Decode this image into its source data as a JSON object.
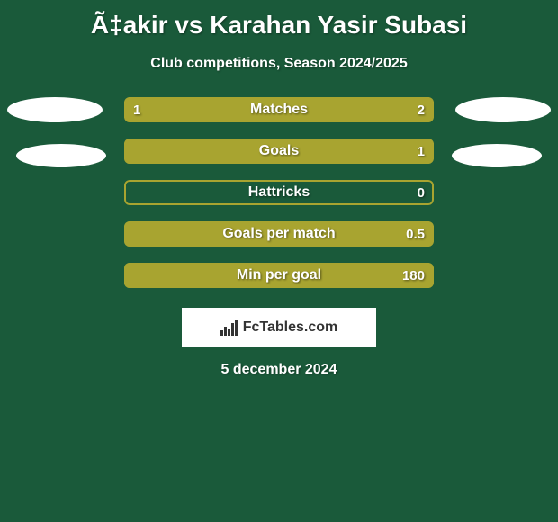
{
  "header": {
    "title": "Ã‡akir vs Karahan Yasir Subasi",
    "subtitle": "Club competitions, Season 2024/2025"
  },
  "comparison": {
    "background_color": "#1a5a3a",
    "bar_border_color": "#a8a430",
    "left_fill_color": "#a8a430",
    "right_fill_color": "#a8a430",
    "empty_fill_color": "#1a5a3a",
    "text_color": "#ffffff",
    "bars": [
      {
        "key": "matches",
        "label": "Matches",
        "left_value": "1",
        "right_value": "2",
        "left_pct": 33,
        "right_pct": 67,
        "show_left_value": true
      },
      {
        "key": "goals",
        "label": "Goals",
        "left_value": "",
        "right_value": "1",
        "left_pct": 0,
        "right_pct": 100,
        "show_left_value": false
      },
      {
        "key": "hattricks",
        "label": "Hattricks",
        "left_value": "",
        "right_value": "0",
        "left_pct": 0,
        "right_pct": 0,
        "show_left_value": false
      },
      {
        "key": "goals-per-match",
        "label": "Goals per match",
        "left_value": "",
        "right_value": "0.5",
        "left_pct": 0,
        "right_pct": 100,
        "show_left_value": false
      },
      {
        "key": "min-per-goal",
        "label": "Min per goal",
        "left_value": "",
        "right_value": "180",
        "left_pct": 0,
        "right_pct": 100,
        "show_left_value": false
      }
    ]
  },
  "branding": {
    "text": "FcTables.com"
  },
  "footer": {
    "date": "5 december 2024"
  }
}
